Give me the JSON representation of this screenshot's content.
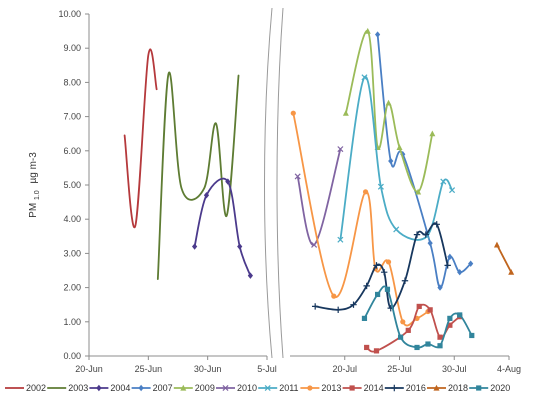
{
  "chart_data": {
    "type": "line",
    "ylabel": {
      "main": "PM",
      "sub": "1.0",
      "unit": "µg m-3"
    },
    "ylim": [
      0,
      10
    ],
    "yticks": [
      "0.00",
      "1.00",
      "2.00",
      "3.00",
      "4.00",
      "5.00",
      "6.00",
      "7.00",
      "8.00",
      "9.00",
      "10.00"
    ],
    "grid": false,
    "axis_break": true,
    "legend_position": "bottom",
    "panels": [
      {
        "x_start": "20-Jun",
        "x_range": [
          0,
          15
        ],
        "xticks": [
          {
            "label": "20-Jun",
            "x": 0
          },
          {
            "label": "25-Jun",
            "x": 5
          },
          {
            "label": "30-Jun",
            "x": 10
          },
          {
            "label": "5-Jul",
            "x": 15
          }
        ]
      },
      {
        "x_start": "15-Jul",
        "x_range": [
          0,
          20
        ],
        "xticks": [
          {
            "label": "20-Jul",
            "x": 5
          },
          {
            "label": "25-Jul",
            "x": 10
          },
          {
            "label": "30-Jul",
            "x": 15
          },
          {
            "label": "4-Aug",
            "x": 20
          }
        ]
      }
    ],
    "series": [
      {
        "name": "2002",
        "color": "#b5393c",
        "marker": "none",
        "points": [
          {
            "p": 0,
            "x": 3.0,
            "y": 6.45
          },
          {
            "p": 0,
            "x": 3.9,
            "y": 3.8
          },
          {
            "p": 0,
            "x": 5.0,
            "y": 8.8
          },
          {
            "p": 0,
            "x": 5.7,
            "y": 7.8
          }
        ]
      },
      {
        "name": "2003",
        "color": "#5e7c33",
        "marker": "none",
        "points": [
          {
            "p": 0,
            "x": 5.8,
            "y": 2.25
          },
          {
            "p": 0,
            "x": 6.7,
            "y": 8.25
          },
          {
            "p": 0,
            "x": 7.8,
            "y": 4.9
          },
          {
            "p": 0,
            "x": 9.7,
            "y": 4.9
          },
          {
            "p": 0,
            "x": 10.7,
            "y": 6.8
          },
          {
            "p": 0,
            "x": 11.6,
            "y": 4.1
          },
          {
            "p": 0,
            "x": 12.6,
            "y": 8.2
          }
        ]
      },
      {
        "name": "2004",
        "color": "#4b3a8c",
        "marker": "diamond",
        "points": [
          {
            "p": 0,
            "x": 8.9,
            "y": 3.2
          },
          {
            "p": 0,
            "x": 9.9,
            "y": 4.7
          },
          {
            "p": 0,
            "x": 11.7,
            "y": 5.1
          },
          {
            "p": 0,
            "x": 12.7,
            "y": 3.2
          },
          {
            "p": 0,
            "x": 13.6,
            "y": 2.35
          }
        ]
      },
      {
        "name": "2007",
        "color": "#4a7fc4",
        "marker": "diamond",
        "points": [
          {
            "p": 1,
            "x": 8.0,
            "y": 9.4
          },
          {
            "p": 1,
            "x": 9.2,
            "y": 5.7
          },
          {
            "p": 1,
            "x": 10.3,
            "y": 5.9
          },
          {
            "p": 1,
            "x": 12.8,
            "y": 3.3
          },
          {
            "p": 1,
            "x": 13.7,
            "y": 2.0
          },
          {
            "p": 1,
            "x": 14.6,
            "y": 2.9
          },
          {
            "p": 1,
            "x": 15.5,
            "y": 2.45
          },
          {
            "p": 1,
            "x": 16.5,
            "y": 2.7
          }
        ]
      },
      {
        "name": "2009",
        "color": "#9bbb59",
        "marker": "triangle",
        "points": [
          {
            "p": 1,
            "x": 5.1,
            "y": 7.1
          },
          {
            "p": 1,
            "x": 7.1,
            "y": 9.5
          },
          {
            "p": 1,
            "x": 8.0,
            "y": 6.1
          },
          {
            "p": 1,
            "x": 9.0,
            "y": 7.4
          },
          {
            "p": 1,
            "x": 10.0,
            "y": 6.1
          },
          {
            "p": 1,
            "x": 11.7,
            "y": 4.8
          },
          {
            "p": 1,
            "x": 13.0,
            "y": 6.5
          }
        ]
      },
      {
        "name": "2010",
        "color": "#8064a2",
        "marker": "x",
        "points": [
          {
            "p": 1,
            "x": 0.7,
            "y": 5.25
          },
          {
            "p": 1,
            "x": 2.2,
            "y": 3.25
          },
          {
            "p": 1,
            "x": 4.6,
            "y": 6.05
          }
        ]
      },
      {
        "name": "2011",
        "color": "#4bacc6",
        "marker": "x",
        "points": [
          {
            "p": 1,
            "x": 4.6,
            "y": 3.4
          },
          {
            "p": 1,
            "x": 6.8,
            "y": 8.15
          },
          {
            "p": 1,
            "x": 8.3,
            "y": 4.95
          },
          {
            "p": 1,
            "x": 9.7,
            "y": 3.7
          },
          {
            "p": 1,
            "x": 12.5,
            "y": 3.5
          },
          {
            "p": 1,
            "x": 14.0,
            "y": 5.1
          },
          {
            "p": 1,
            "x": 14.8,
            "y": 4.85
          }
        ]
      },
      {
        "name": "2013",
        "color": "#f79646",
        "marker": "circle",
        "points": [
          {
            "p": 1,
            "x": 0.3,
            "y": 7.1
          },
          {
            "p": 1,
            "x": 4.0,
            "y": 1.75
          },
          {
            "p": 1,
            "x": 6.9,
            "y": 4.8
          },
          {
            "p": 1,
            "x": 7.8,
            "y": 2.55
          },
          {
            "p": 1,
            "x": 9.0,
            "y": 2.75
          },
          {
            "p": 1,
            "x": 10.3,
            "y": 1.0
          },
          {
            "p": 1,
            "x": 11.6,
            "y": 1.1
          },
          {
            "p": 1,
            "x": 12.6,
            "y": 1.3
          }
        ]
      },
      {
        "name": "2014",
        "color": "#c0504d",
        "marker": "square",
        "points": [
          {
            "p": 1,
            "x": 7.0,
            "y": 0.25
          },
          {
            "p": 1,
            "x": 7.9,
            "y": 0.15
          },
          {
            "p": 1,
            "x": 10.8,
            "y": 0.75
          },
          {
            "p": 1,
            "x": 11.8,
            "y": 1.45
          },
          {
            "p": 1,
            "x": 12.8,
            "y": 1.35
          },
          {
            "p": 1,
            "x": 13.7,
            "y": 0.55
          },
          {
            "p": 1,
            "x": 14.6,
            "y": 0.9
          },
          {
            "p": 1,
            "x": 15.5,
            "y": 1.15
          }
        ]
      },
      {
        "name": "2016",
        "color": "#17375e",
        "marker": "plus",
        "points": [
          {
            "p": 1,
            "x": 2.3,
            "y": 1.45
          },
          {
            "p": 1,
            "x": 4.4,
            "y": 1.35
          },
          {
            "p": 1,
            "x": 5.8,
            "y": 1.5
          },
          {
            "p": 1,
            "x": 7.0,
            "y": 2.05
          },
          {
            "p": 1,
            "x": 7.9,
            "y": 2.65
          },
          {
            "p": 1,
            "x": 8.6,
            "y": 2.45
          },
          {
            "p": 1,
            "x": 9.2,
            "y": 1.4
          },
          {
            "p": 1,
            "x": 10.5,
            "y": 2.2
          },
          {
            "p": 1,
            "x": 11.6,
            "y": 3.55
          },
          {
            "p": 1,
            "x": 12.4,
            "y": 3.55
          },
          {
            "p": 1,
            "x": 13.4,
            "y": 3.85
          },
          {
            "p": 1,
            "x": 14.4,
            "y": 2.65
          }
        ]
      },
      {
        "name": "2018",
        "color": "#c0651e",
        "marker": "triangle",
        "points": [
          {
            "p": 1,
            "x": 18.9,
            "y": 3.25
          },
          {
            "p": 1,
            "x": 20.2,
            "y": 2.45
          }
        ]
      },
      {
        "name": "2020",
        "color": "#31859c",
        "marker": "square",
        "points": [
          {
            "p": 1,
            "x": 6.8,
            "y": 1.1
          },
          {
            "p": 1,
            "x": 8.0,
            "y": 1.8
          },
          {
            "p": 1,
            "x": 8.9,
            "y": 1.95
          },
          {
            "p": 1,
            "x": 10.1,
            "y": 0.55
          },
          {
            "p": 1,
            "x": 11.6,
            "y": 0.25
          },
          {
            "p": 1,
            "x": 12.6,
            "y": 0.35
          },
          {
            "p": 1,
            "x": 13.7,
            "y": 0.3
          },
          {
            "p": 1,
            "x": 14.6,
            "y": 1.1
          },
          {
            "p": 1,
            "x": 15.5,
            "y": 1.2
          },
          {
            "p": 1,
            "x": 16.6,
            "y": 0.6
          }
        ]
      }
    ]
  }
}
